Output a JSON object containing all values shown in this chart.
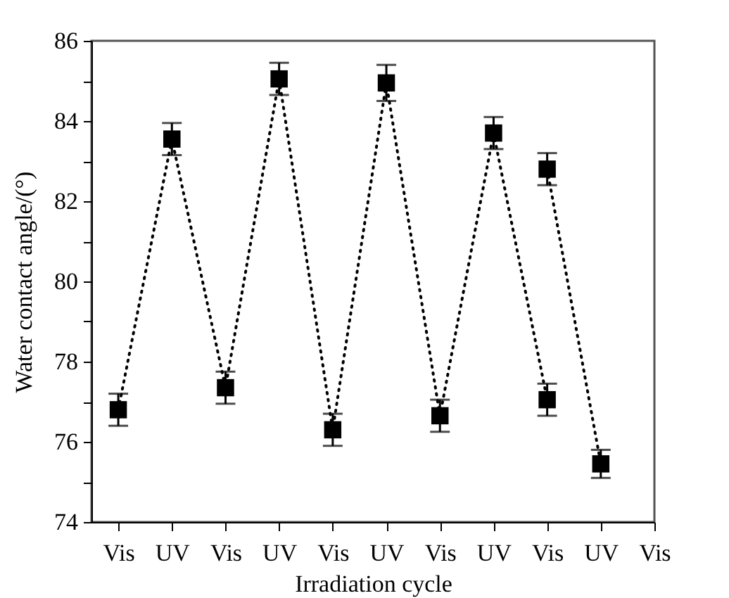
{
  "chart_data": {
    "type": "line",
    "xlabel": "Irradiation cycle",
    "ylabel": "Water contact angle/(°)",
    "categories": [
      "Vis",
      "UV",
      "Vis",
      "UV",
      "Vis",
      "UV",
      "Vis",
      "UV",
      "Vis",
      "UV",
      "Vis"
    ],
    "series": [
      {
        "color": "#000000",
        "values": [
          76.8,
          83.55,
          77.35,
          85.05,
          76.3,
          84.95,
          76.65,
          83.7,
          77.05,
          null,
          null
        ],
        "errors": [
          0.4,
          0.4,
          0.4,
          0.4,
          0.4,
          0.45,
          0.4,
          0.4,
          0.4,
          null,
          null
        ]
      },
      {
        "color": "#000000",
        "values": [
          null,
          null,
          null,
          null,
          null,
          null,
          null,
          null,
          82.8,
          75.45,
          null
        ],
        "errors": [
          null,
          null,
          null,
          null,
          null,
          null,
          null,
          null,
          0.4,
          0.35,
          null
        ]
      }
    ],
    "ylim": [
      74,
      86
    ],
    "yticks": [
      74,
      {
        "value": 75,
        "label": null
      },
      76,
      {
        "value": 77,
        "label": null
      },
      78,
      {
        "value": 79,
        "label": null
      },
      80,
      {
        "value": 81,
        "label": null
      },
      82,
      {
        "value": 83,
        "label": null
      },
      84,
      {
        "value": 85,
        "label": null
      },
      86
    ],
    "marker": "square",
    "line_style": "dotted",
    "grid": false
  }
}
